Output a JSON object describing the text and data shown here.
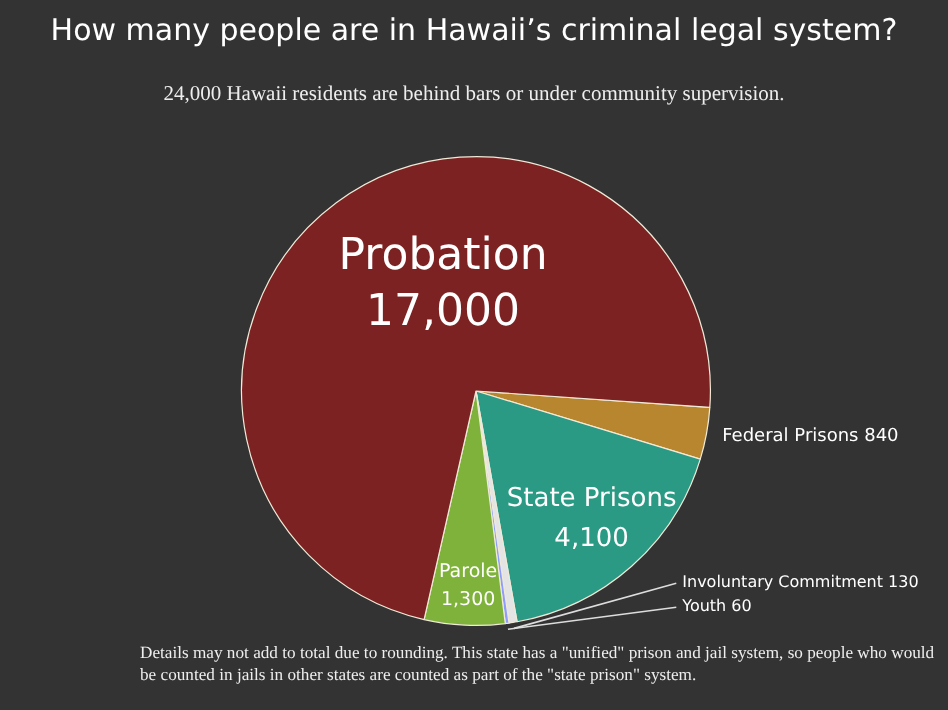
{
  "chart_data": {
    "type": "pie",
    "title": "How many people are in Hawaii’s criminal legal system?",
    "subtitle": "24,000 Hawaii residents are behind bars or under community supervision.",
    "categories": [
      "Federal Prisons",
      "State Prisons",
      "Involuntary Commitment",
      "Youth",
      "Parole",
      "Probation"
    ],
    "values": [
      840,
      4100,
      130,
      60,
      1300,
      17000
    ],
    "value_labels": [
      "840",
      "4,100",
      "130",
      "60",
      "1,300",
      "17,000"
    ],
    "colors": [
      "#b8862e",
      "#2a9a84",
      "#e4e4e4",
      "#8f9cff",
      "#7fb23a",
      "#7d2222"
    ],
    "legend": false,
    "annotations": [
      "Details may not add to total due to rounding. This state has a \"unified\" prison and jail system, so people who would be counted in jails in other states are counted as part of the \"state prison\" system."
    ]
  }
}
